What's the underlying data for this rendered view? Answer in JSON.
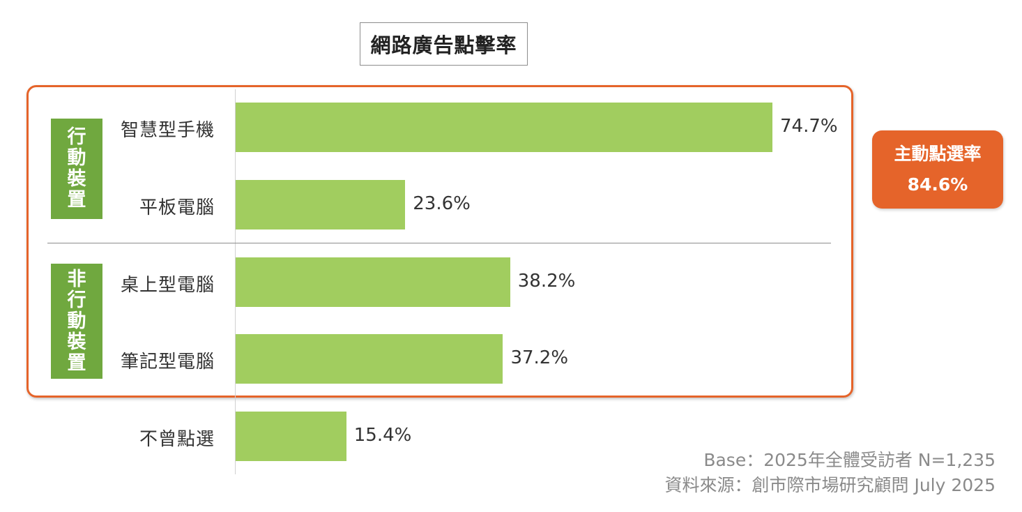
{
  "chart_data": {
    "type": "bar",
    "orientation": "horizontal",
    "title": "網路廣告點擊率",
    "categories": [
      "智慧型手機",
      "平板電腦",
      "桌上型電腦",
      "筆記型電腦",
      "不曾點選"
    ],
    "values": [
      74.7,
      23.6,
      38.2,
      37.2,
      15.4
    ],
    "value_labels": [
      "74.7%",
      "23.6%",
      "38.2%",
      "37.2%",
      "15.4%"
    ],
    "unit": "%",
    "xlim": [
      0,
      100
    ],
    "grid": false,
    "groups": [
      {
        "label": "行動裝置",
        "categories": [
          "智慧型手機",
          "平板電腦"
        ]
      },
      {
        "label": "非行動裝置",
        "categories": [
          "桌上型電腦",
          "筆記型電腦"
        ]
      }
    ],
    "bar_color": "#a1cd5f"
  },
  "callout": {
    "label": "主動點選率",
    "value": "84.6%"
  },
  "footnotes": {
    "base": "Base：2025年全體受訪者 N=1,235",
    "source": "資料來源：創市際市場研究顧問 July 2025"
  },
  "colors": {
    "accent": "#e5642a",
    "group_tag": "#70a83f",
    "bar": "#a1cd5f"
  }
}
